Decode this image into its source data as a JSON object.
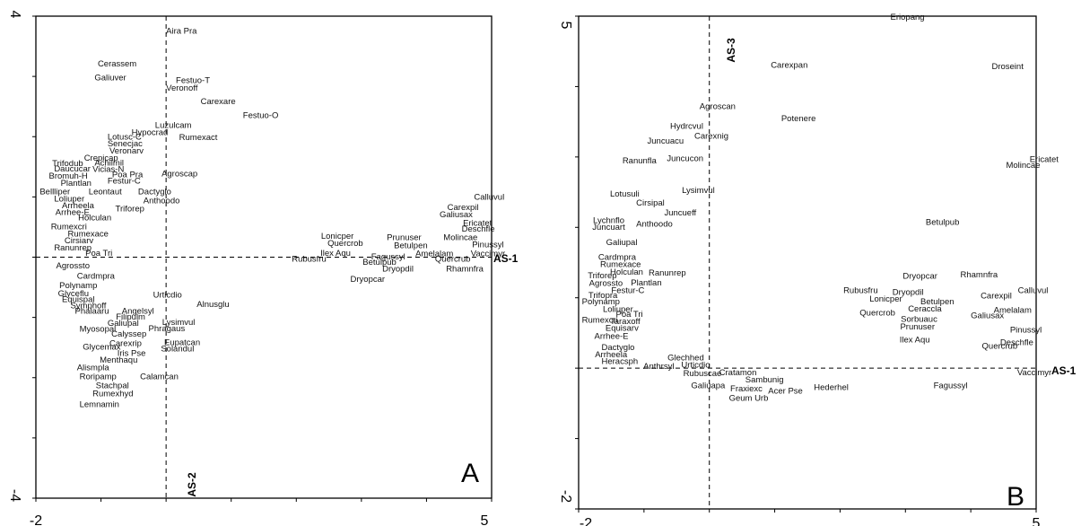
{
  "chart_data": [
    {
      "type": "scatter",
      "panel_label": "A",
      "xlim": [
        -2,
        5
      ],
      "ylim": [
        -4,
        4
      ],
      "x_ticks": [
        "-2",
        "5"
      ],
      "y_ticks": [
        "4",
        "-4"
      ],
      "horizontal_axis_label": "AS-1",
      "vertical_axis_label": "AS-2",
      "points": [
        {
          "label": "Aira Pra",
          "x": 0.0,
          "y": 3.75
        },
        {
          "label": "Cerassem",
          "x": -1.05,
          "y": 3.2
        },
        {
          "label": "Galiuver",
          "x": -1.1,
          "y": 2.97
        },
        {
          "label": "Festuo-T",
          "x": 0.15,
          "y": 2.93
        },
        {
          "label": "Veronoff",
          "x": 0.0,
          "y": 2.8
        },
        {
          "label": "Carexare",
          "x": 0.53,
          "y": 2.58
        },
        {
          "label": "Festuo-O",
          "x": 1.18,
          "y": 2.35
        },
        {
          "label": "Luzulcam",
          "x": -0.17,
          "y": 2.18
        },
        {
          "label": "Hypocrad",
          "x": -0.53,
          "y": 2.06
        },
        {
          "label": "Rumexact",
          "x": 0.2,
          "y": 1.98
        },
        {
          "label": "Lotusc-C",
          "x": -0.9,
          "y": 1.99
        },
        {
          "label": "Senecjac",
          "x": -0.9,
          "y": 1.88
        },
        {
          "label": "Veronarv",
          "x": -0.87,
          "y": 1.76
        },
        {
          "label": "Crepicap",
          "x": -1.26,
          "y": 1.64
        },
        {
          "label": "Trifodub",
          "x": -1.75,
          "y": 1.55
        },
        {
          "label": "Achilmil",
          "x": -1.1,
          "y": 1.56
        },
        {
          "label": "Daucucar",
          "x": -1.72,
          "y": 1.46
        },
        {
          "label": "Vicias-N",
          "x": -1.13,
          "y": 1.45
        },
        {
          "label": "Bromuh-H",
          "x": -1.8,
          "y": 1.34
        },
        {
          "label": "Poa Pra",
          "x": -0.83,
          "y": 1.36
        },
        {
          "label": "Agroscap",
          "x": -0.07,
          "y": 1.38
        },
        {
          "label": "Plantlan",
          "x": -1.62,
          "y": 1.22
        },
        {
          "label": "Festur-C",
          "x": -0.9,
          "y": 1.26
        },
        {
          "label": "Bellliper",
          "x": -1.94,
          "y": 1.08
        },
        {
          "label": "Leontaut",
          "x": -1.19,
          "y": 1.08
        },
        {
          "label": "Dactyglo",
          "x": -0.43,
          "y": 1.08
        },
        {
          "label": "Loliuper",
          "x": -1.72,
          "y": 0.96
        },
        {
          "label": "Anthoodo",
          "x": -0.35,
          "y": 0.93
        },
        {
          "label": "Arrheela",
          "x": -1.6,
          "y": 0.85
        },
        {
          "label": "Triforep",
          "x": -0.78,
          "y": 0.8
        },
        {
          "label": "Arrhee-E",
          "x": -1.7,
          "y": 0.74
        },
        {
          "label": "Holculan",
          "x": -1.35,
          "y": 0.65
        },
        {
          "label": "Rumexcri",
          "x": -1.77,
          "y": 0.5
        },
        {
          "label": "Rumexace",
          "x": -1.51,
          "y": 0.38
        },
        {
          "label": "Cirsiarv",
          "x": -1.56,
          "y": 0.27
        },
        {
          "label": "Ranunrep",
          "x": -1.72,
          "y": 0.15
        },
        {
          "label": "Poa Tri",
          "x": -1.24,
          "y": 0.06
        },
        {
          "label": "Agrossto",
          "x": -1.69,
          "y": -0.15
        },
        {
          "label": "Cardmpra",
          "x": -1.37,
          "y": -0.32
        },
        {
          "label": "Polynamp",
          "x": -1.64,
          "y": -0.48
        },
        {
          "label": "Glyceflu",
          "x": -1.66,
          "y": -0.61
        },
        {
          "label": "Equispal",
          "x": -1.6,
          "y": -0.71
        },
        {
          "label": "Symphoff",
          "x": -1.47,
          "y": -0.81
        },
        {
          "label": "Phalaaru",
          "x": -1.4,
          "y": -0.9
        },
        {
          "label": "Urticdio",
          "x": -0.2,
          "y": -0.63
        },
        {
          "label": "Alnusglu",
          "x": 0.47,
          "y": -0.79
        },
        {
          "label": "Angelsyl",
          "x": -0.68,
          "y": -0.9
        },
        {
          "label": "Filipulm",
          "x": -0.77,
          "y": -1.0
        },
        {
          "label": "Galiupal",
          "x": -0.9,
          "y": -1.1
        },
        {
          "label": "Lysimvul",
          "x": -0.06,
          "y": -1.09
        },
        {
          "label": "Myosopal",
          "x": -1.33,
          "y": -1.2
        },
        {
          "label": "Phragaus",
          "x": -0.27,
          "y": -1.19
        },
        {
          "label": "Calyssep",
          "x": -0.84,
          "y": -1.28
        },
        {
          "label": "Carexrip",
          "x": -0.87,
          "y": -1.44
        },
        {
          "label": "Eupatcan",
          "x": -0.03,
          "y": -1.42
        },
        {
          "label": "Glycemax",
          "x": -1.28,
          "y": -1.5
        },
        {
          "label": "Solandul",
          "x": -0.08,
          "y": -1.53
        },
        {
          "label": "Iris Pse",
          "x": -0.75,
          "y": -1.6
        },
        {
          "label": "Menthaqu",
          "x": -1.02,
          "y": -1.71
        },
        {
          "label": "Alismpla",
          "x": -1.37,
          "y": -1.84
        },
        {
          "label": "Roripamp",
          "x": -1.33,
          "y": -1.99
        },
        {
          "label": "Calamcan",
          "x": -0.4,
          "y": -1.99
        },
        {
          "label": "Stachpal",
          "x": -1.08,
          "y": -2.14
        },
        {
          "label": "Rumexhyd",
          "x": -1.13,
          "y": -2.27
        },
        {
          "label": "Lemnamin",
          "x": -1.33,
          "y": -2.45
        },
        {
          "label": "Calluvul",
          "x": 4.73,
          "y": 0.99
        },
        {
          "label": "Carexpil",
          "x": 4.32,
          "y": 0.82
        },
        {
          "label": "Galiusax",
          "x": 4.2,
          "y": 0.7
        },
        {
          "label": "Ericatet",
          "x": 4.56,
          "y": 0.56
        },
        {
          "label": "Deschfle",
          "x": 4.54,
          "y": 0.46
        },
        {
          "label": "Lonicper",
          "x": 2.38,
          "y": 0.34
        },
        {
          "label": "Prunuser",
          "x": 3.39,
          "y": 0.32
        },
        {
          "label": "Molincae",
          "x": 4.26,
          "y": 0.32
        },
        {
          "label": "Quercrob",
          "x": 2.48,
          "y": 0.22
        },
        {
          "label": "Betulpen",
          "x": 3.5,
          "y": 0.19
        },
        {
          "label": "Pinussyl",
          "x": 4.7,
          "y": 0.2
        },
        {
          "label": "Ilex Aqu",
          "x": 2.37,
          "y": 0.06
        },
        {
          "label": "Amelalam",
          "x": 3.83,
          "y": 0.05
        },
        {
          "label": "Vaccimyr",
          "x": 4.68,
          "y": 0.05
        },
        {
          "label": "Fagussyl",
          "x": 3.15,
          "y": 0.0
        },
        {
          "label": "Rubusfru",
          "x": 1.93,
          "y": -0.04
        },
        {
          "label": "Quercrub",
          "x": 4.13,
          "y": -0.04
        },
        {
          "label": "Betulpub",
          "x": 3.02,
          "y": -0.09
        },
        {
          "label": "Rhamnfra",
          "x": 4.3,
          "y": -0.2
        },
        {
          "label": "Dryopdil",
          "x": 3.32,
          "y": -0.2
        },
        {
          "label": "Dryopcar",
          "x": 2.83,
          "y": -0.37
        }
      ]
    },
    {
      "type": "scatter",
      "panel_label": "B",
      "xlim": [
        -2,
        5
      ],
      "ylim": [
        -2,
        5
      ],
      "x_ticks": [
        "-2",
        "5"
      ],
      "y_ticks": [
        "5",
        "-2"
      ],
      "horizontal_axis_label": "AS-1",
      "vertical_axis_label": "AS-3",
      "points": [
        {
          "label": "Eriopang",
          "x": 2.77,
          "y": 4.98
        },
        {
          "label": "Carexpan",
          "x": 0.94,
          "y": 4.3
        },
        {
          "label": "Droseint",
          "x": 4.32,
          "y": 4.28
        },
        {
          "label": "Agroscan",
          "x": -0.15,
          "y": 3.71
        },
        {
          "label": "Potenere",
          "x": 1.1,
          "y": 3.54
        },
        {
          "label": "Hydrcvul",
          "x": -0.6,
          "y": 3.43
        },
        {
          "label": "Carexnig",
          "x": -0.23,
          "y": 3.29
        },
        {
          "label": "Juncuacu",
          "x": -0.95,
          "y": 3.22
        },
        {
          "label": "Juncucon",
          "x": -0.65,
          "y": 2.97
        },
        {
          "label": "Ranunfla",
          "x": -1.33,
          "y": 2.94
        },
        {
          "label": "Ericatet",
          "x": 4.9,
          "y": 2.96
        },
        {
          "label": "Molincae",
          "x": 4.54,
          "y": 2.88
        },
        {
          "label": "Lysimvul",
          "x": -0.42,
          "y": 2.52
        },
        {
          "label": "Lotusuli",
          "x": -1.52,
          "y": 2.47
        },
        {
          "label": "Cirsipal",
          "x": -1.12,
          "y": 2.34
        },
        {
          "label": "Juncueff",
          "x": -0.69,
          "y": 2.2
        },
        {
          "label": "Lychnflo",
          "x": -1.78,
          "y": 2.09
        },
        {
          "label": "Anthoodo",
          "x": -1.12,
          "y": 2.04
        },
        {
          "label": "Juncuart",
          "x": -1.79,
          "y": 2.0
        },
        {
          "label": "Betulpub",
          "x": 3.31,
          "y": 2.07
        },
        {
          "label": "Galiupal",
          "x": -1.58,
          "y": 1.78
        },
        {
          "label": "Cardmpra",
          "x": -1.7,
          "y": 1.57
        },
        {
          "label": "Rumexace",
          "x": -1.67,
          "y": 1.47
        },
        {
          "label": "Holculan",
          "x": -1.52,
          "y": 1.36
        },
        {
          "label": "Ranunrep",
          "x": -0.93,
          "y": 1.35
        },
        {
          "label": "Triforep",
          "x": -1.86,
          "y": 1.31
        },
        {
          "label": "Agrossto",
          "x": -1.84,
          "y": 1.2
        },
        {
          "label": "Plantlan",
          "x": -1.2,
          "y": 1.21
        },
        {
          "label": "Festur-C",
          "x": -1.5,
          "y": 1.1
        },
        {
          "label": "Trifopra",
          "x": -1.85,
          "y": 1.03
        },
        {
          "label": "Dryopcar",
          "x": 2.96,
          "y": 1.3
        },
        {
          "label": "Rhamnfra",
          "x": 3.84,
          "y": 1.32
        },
        {
          "label": "Rubusfru",
          "x": 2.05,
          "y": 1.1
        },
        {
          "label": "Dryopdil",
          "x": 2.8,
          "y": 1.07
        },
        {
          "label": "Calluvul",
          "x": 4.72,
          "y": 1.1
        },
        {
          "label": "Carexpil",
          "x": 4.15,
          "y": 1.02
        },
        {
          "label": "Lonicper",
          "x": 2.45,
          "y": 0.98
        },
        {
          "label": "Betulpen",
          "x": 3.23,
          "y": 0.94
        },
        {
          "label": "Polynamp",
          "x": -1.95,
          "y": 0.94
        },
        {
          "label": "Loliuper",
          "x": -1.63,
          "y": 0.83
        },
        {
          "label": "Ceraccla",
          "x": 3.04,
          "y": 0.84
        },
        {
          "label": "Amelalam",
          "x": 4.35,
          "y": 0.82
        },
        {
          "label": "Quercrob",
          "x": 2.3,
          "y": 0.78
        },
        {
          "label": "Poa Tri",
          "x": -1.43,
          "y": 0.76
        },
        {
          "label": "Galiusax",
          "x": 4.0,
          "y": 0.74
        },
        {
          "label": "Sorbuauc",
          "x": 2.93,
          "y": 0.69
        },
        {
          "label": "Rumexcri",
          "x": -1.95,
          "y": 0.68
        },
        {
          "label": "Taraxoff",
          "x": -1.52,
          "y": 0.66
        },
        {
          "label": "Prunuser",
          "x": 2.92,
          "y": 0.58
        },
        {
          "label": "Equisarv",
          "x": -1.59,
          "y": 0.56
        },
        {
          "label": "Pinussyl",
          "x": 4.6,
          "y": 0.54
        },
        {
          "label": "Arrhee-E",
          "x": -1.76,
          "y": 0.45
        },
        {
          "label": "Ilex Aqu",
          "x": 2.91,
          "y": 0.4
        },
        {
          "label": "Deschfle",
          "x": 4.45,
          "y": 0.36
        },
        {
          "label": "Quercrub",
          "x": 4.17,
          "y": 0.31
        },
        {
          "label": "Dactyglo",
          "x": -1.65,
          "y": 0.29
        },
        {
          "label": "Arrheela",
          "x": -1.75,
          "y": 0.19
        },
        {
          "label": "Heracsph",
          "x": -1.65,
          "y": 0.09
        },
        {
          "label": "Glechhed",
          "x": -0.64,
          "y": 0.14
        },
        {
          "label": "Anthrsyl",
          "x": -1.01,
          "y": 0.02
        },
        {
          "label": "Urticdio",
          "x": -0.43,
          "y": 0.04
        },
        {
          "label": "Rubuscae",
          "x": -0.4,
          "y": -0.08
        },
        {
          "label": "Cratamon",
          "x": 0.15,
          "y": -0.07
        },
        {
          "label": "Sambunig",
          "x": 0.55,
          "y": -0.17
        },
        {
          "label": "Galiuapa",
          "x": -0.28,
          "y": -0.25
        },
        {
          "label": "Fraxiexc",
          "x": 0.32,
          "y": -0.3
        },
        {
          "label": "Acer Pse",
          "x": 0.9,
          "y": -0.33
        },
        {
          "label": "Hederhel",
          "x": 1.6,
          "y": -0.28
        },
        {
          "label": "Fagussyl",
          "x": 3.43,
          "y": -0.25
        },
        {
          "label": "Vaccimyr",
          "x": 4.71,
          "y": -0.07
        },
        {
          "label": "Geum Urb",
          "x": 0.3,
          "y": -0.43
        }
      ]
    }
  ]
}
